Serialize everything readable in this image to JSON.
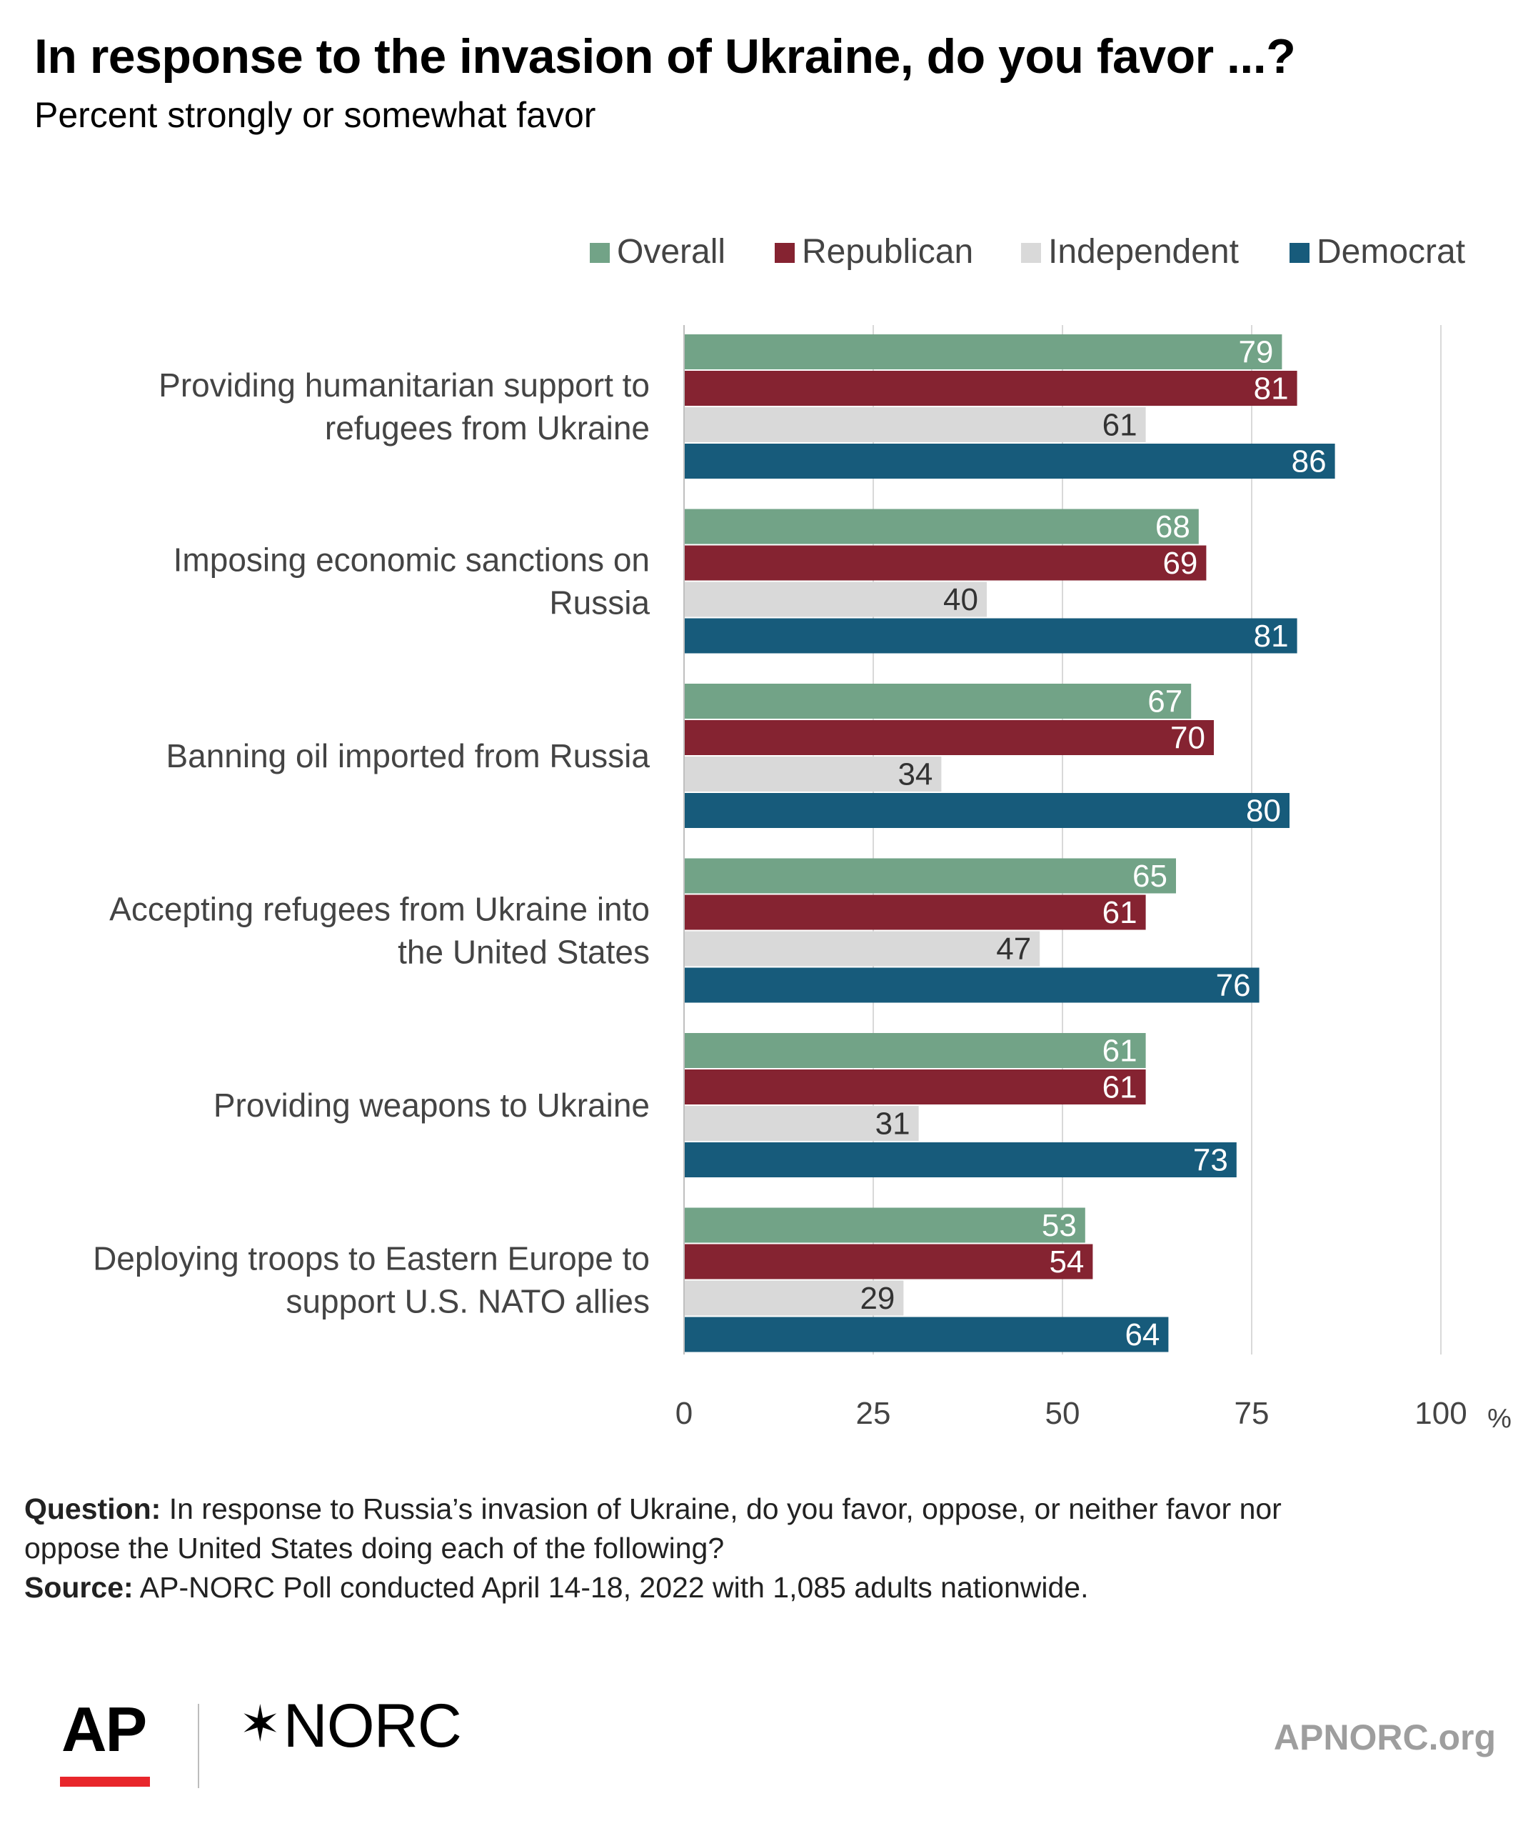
{
  "header": {
    "title": "In response to the invasion of Ukraine, do you favor ...?",
    "subtitle": "Percent strongly or somewhat favor"
  },
  "chart_data": {
    "type": "bar",
    "orientation": "horizontal",
    "title": "In response to the invasion of Ukraine, do you favor ...?",
    "subtitle": "Percent strongly or somewhat favor",
    "categories": [
      [
        "Providing humanitarian support to",
        "refugees from Ukraine"
      ],
      [
        "Imposing economic sanctions on",
        "Russia"
      ],
      [
        "Banning oil imported from Russia"
      ],
      [
        "Accepting refugees from Ukraine into",
        "the United States"
      ],
      [
        "Providing weapons to Ukraine"
      ],
      [
        "Deploying troops to Eastern Europe to",
        "support U.S. NATO allies"
      ]
    ],
    "series": [
      {
        "name": "Overall",
        "color": "#72a387",
        "label_color": "#ffffff",
        "values": [
          79,
          68,
          67,
          65,
          61,
          53
        ]
      },
      {
        "name": "Republican",
        "color": "#852331",
        "label_color": "#ffffff",
        "values": [
          81,
          69,
          70,
          61,
          61,
          54
        ]
      },
      {
        "name": "Independent",
        "color": "#d9d9d9",
        "label_color": "#333333",
        "values": [
          61,
          40,
          34,
          47,
          31,
          29
        ]
      },
      {
        "name": "Democrat",
        "color": "#175b7b",
        "label_color": "#ffffff",
        "values": [
          86,
          81,
          80,
          76,
          73,
          64
        ]
      }
    ],
    "xlim": [
      0,
      100
    ],
    "ticks": [
      0,
      25,
      50,
      75,
      100
    ],
    "tick_labels": [
      "0",
      "25",
      "50",
      "75",
      "100"
    ],
    "unit_label": "%",
    "grid": true,
    "legend_position": "top-right",
    "data_labels": true
  },
  "footer": {
    "question_label": "Question:",
    "question_line1": " In response to Russia’s invasion of Ukraine, do you favor, oppose, or neither favor nor",
    "question_line2": "oppose the United States doing each of the following?",
    "source_label": "Source:",
    "source_text": " AP-NORC Poll conducted April 14-18, 2022 with 1,085 adults nationwide."
  },
  "branding": {
    "ap_logo": "AP",
    "norc_logo": "NORC",
    "site": "APNORC.org"
  }
}
